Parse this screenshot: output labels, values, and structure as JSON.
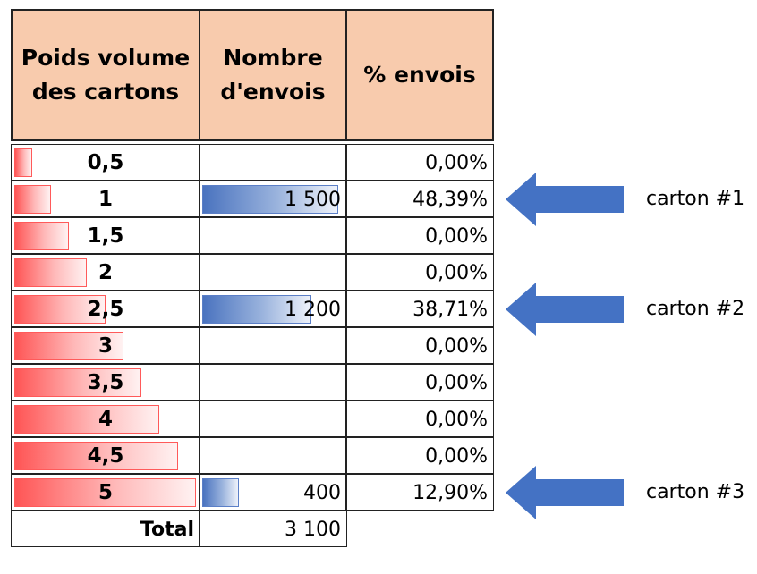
{
  "headers": {
    "col1": "Poids volume des cartons",
    "col2": "Nombre d'envois",
    "col3": "% envois"
  },
  "rows": [
    {
      "poids": "0,5",
      "envois": "",
      "pct": "0,00%",
      "poids_value": 0.5,
      "envois_value": 0
    },
    {
      "poids": "1",
      "envois": "1 500",
      "pct": "48,39%",
      "poids_value": 1,
      "envois_value": 1500
    },
    {
      "poids": "1,5",
      "envois": "",
      "pct": "0,00%",
      "poids_value": 1.5,
      "envois_value": 0
    },
    {
      "poids": "2",
      "envois": "",
      "pct": "0,00%",
      "poids_value": 2,
      "envois_value": 0
    },
    {
      "poids": "2,5",
      "envois": "1 200",
      "pct": "38,71%",
      "poids_value": 2.5,
      "envois_value": 1200
    },
    {
      "poids": "3",
      "envois": "",
      "pct": "0,00%",
      "poids_value": 3,
      "envois_value": 0
    },
    {
      "poids": "3,5",
      "envois": "",
      "pct": "0,00%",
      "poids_value": 3.5,
      "envois_value": 0
    },
    {
      "poids": "4",
      "envois": "",
      "pct": "0,00%",
      "poids_value": 4,
      "envois_value": 0
    },
    {
      "poids": "4,5",
      "envois": "",
      "pct": "0,00%",
      "poids_value": 4.5,
      "envois_value": 0
    },
    {
      "poids": "5",
      "envois": "400",
      "pct": "12,90%",
      "poids_value": 5,
      "envois_value": 400
    }
  ],
  "total": {
    "label": "Total",
    "value": "3 100"
  },
  "annotations": [
    {
      "label": "carton #1",
      "row": 1
    },
    {
      "label": "carton #2",
      "row": 4
    },
    {
      "label": "carton #3",
      "row": 9
    }
  ],
  "colors": {
    "header_fill": "#f8cbad",
    "red_databar": "#ff5555",
    "blue_databar": "#4a73bf",
    "arrow": "#4472c4"
  }
}
